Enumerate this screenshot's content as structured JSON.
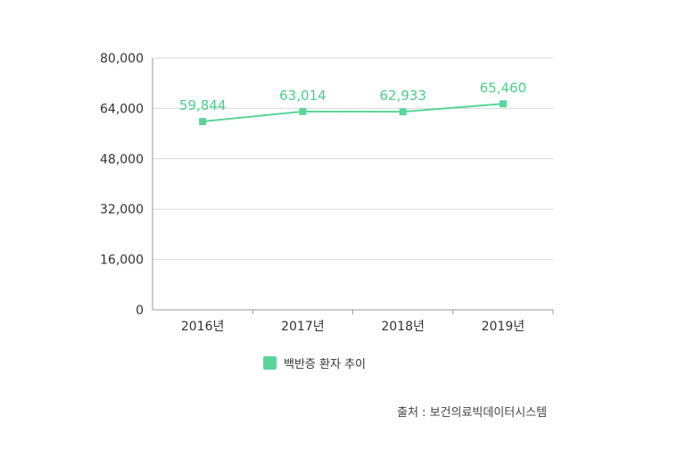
{
  "chart_data": {
    "type": "line",
    "categories": [
      "2016년",
      "2017년",
      "2018년",
      "2019년"
    ],
    "series": [
      {
        "name": "백반증 환자 추이",
        "values": [
          59844,
          63014,
          62933,
          65460
        ],
        "value_labels": [
          "59,844",
          "63,014",
          "62,933",
          "65,460"
        ]
      }
    ],
    "ylim": [
      0,
      80000
    ],
    "yticks": [
      "0",
      "16,000",
      "32,000",
      "48,000",
      "64,000",
      "80,000"
    ],
    "ytick_values": [
      0,
      16000,
      32000,
      48000,
      64000,
      80000
    ],
    "grid": true,
    "legend_position": "bottom-center",
    "color": "#5ad59a",
    "label_color": "#4ccf8a",
    "grid_color": "#d9d9d9",
    "axis_color": "#999999"
  },
  "source": "출처 : 보건의료빅데이터시스템"
}
